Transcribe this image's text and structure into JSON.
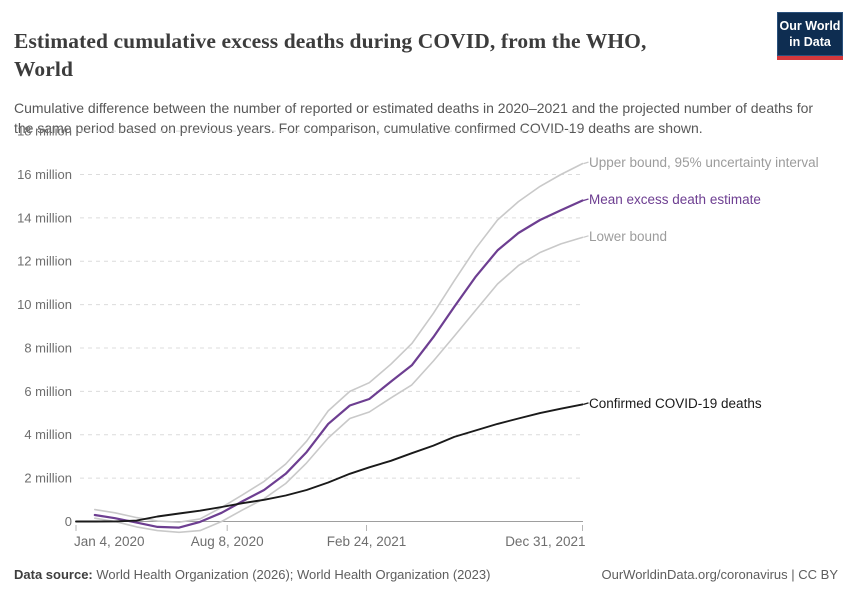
{
  "header": {
    "title": "Estimated cumulative excess deaths during COVID, from the WHO, World",
    "subtitle": "Cumulative difference between the number of reported or estimated deaths in 2020–2021 and the projected number of deaths for the same period based on previous years. For comparison, cumulative confirmed COVID-19 deaths are shown.",
    "logo": {
      "line1": "Our World",
      "line2": "in Data"
    }
  },
  "footer": {
    "datasource_label": "Data source:",
    "datasource_text": " World Health Organization (2026); World Health Organization (2023)",
    "attribution": "OurWorldinData.org/coronavirus | CC BY"
  },
  "colors": {
    "accent_purple": "#6d3e91",
    "bound_line": "#c9c9c9",
    "bound_label": "#9c9c9c",
    "confirmed_line": "#1a1a1a",
    "gridline": "#dcdcdc",
    "zero_line": "#9e9e9e",
    "axis_text": "#6e6e6e",
    "tick_mark": "#b5b5b5",
    "logo_navy": "#0e2d51",
    "logo_red": "#d4383c"
  },
  "chart_data": {
    "type": "line",
    "title": "Estimated cumulative excess deaths during COVID, from the WHO, World",
    "xlabel": "",
    "ylabel": "",
    "x_unit": "days since Jan 4, 2020",
    "x_domain_days": [
      0,
      727
    ],
    "ylim_millions": [
      -0.8,
      18
    ],
    "grid": "dashed-horizontal",
    "legend_position": "right-of-line-labels",
    "x_ticks": [
      {
        "label": "Jan 4, 2020",
        "day": 0
      },
      {
        "label": "Aug 8, 2020",
        "day": 217
      },
      {
        "label": "Feb 24, 2021",
        "day": 417
      },
      {
        "label": "Dec 31, 2021",
        "day": 727
      }
    ],
    "y_ticks": [
      {
        "label": "0",
        "value": 0
      },
      {
        "label": "2 million",
        "value": 2
      },
      {
        "label": "4 million",
        "value": 4
      },
      {
        "label": "6 million",
        "value": 6
      },
      {
        "label": "8 million",
        "value": 8
      },
      {
        "label": "10 million",
        "value": 10
      },
      {
        "label": "12 million",
        "value": 12
      },
      {
        "label": "14 million",
        "value": 14
      },
      {
        "label": "16 million",
        "value": 16
      },
      {
        "label": "18 million",
        "value": 18
      }
    ],
    "series": [
      {
        "name": "Upper bound, 95% uncertainty interval",
        "color": "#c9c9c9",
        "label_color": "#9c9c9c",
        "stroke_width": 1.6,
        "days": [
          27,
          56,
          87,
          117,
          148,
          178,
          209,
          240,
          270,
          301,
          331,
          362,
          393,
          421,
          452,
          482,
          513,
          543,
          574,
          605,
          635,
          666,
          696,
          727
        ],
        "values_millions": [
          0.55,
          0.4,
          0.18,
          0.02,
          -0.03,
          0.12,
          0.65,
          1.25,
          1.85,
          2.65,
          3.7,
          5.1,
          6.0,
          6.4,
          7.25,
          8.2,
          9.6,
          11.1,
          12.6,
          13.9,
          14.75,
          15.45,
          16.0,
          16.5
        ]
      },
      {
        "name": "Lower bound",
        "color": "#c9c9c9",
        "label_color": "#9c9c9c",
        "stroke_width": 1.6,
        "days": [
          27,
          56,
          87,
          117,
          148,
          178,
          209,
          240,
          270,
          301,
          331,
          362,
          393,
          421,
          452,
          482,
          513,
          543,
          574,
          605,
          635,
          666,
          696,
          727
        ],
        "values_millions": [
          0.15,
          0.0,
          -0.25,
          -0.42,
          -0.5,
          -0.42,
          0.0,
          0.55,
          1.05,
          1.75,
          2.7,
          3.85,
          4.75,
          5.05,
          5.7,
          6.3,
          7.4,
          8.55,
          9.75,
          10.95,
          11.8,
          12.4,
          12.8,
          13.1
        ]
      },
      {
        "name": "Mean excess death estimate",
        "color": "#6d3e91",
        "label_color": "#6d3e91",
        "stroke_width": 2.2,
        "days": [
          27,
          56,
          87,
          117,
          148,
          178,
          209,
          240,
          270,
          301,
          331,
          362,
          393,
          421,
          452,
          482,
          513,
          543,
          574,
          605,
          635,
          666,
          696,
          727
        ],
        "values_millions": [
          0.3,
          0.15,
          -0.05,
          -0.25,
          -0.28,
          -0.02,
          0.4,
          0.95,
          1.45,
          2.2,
          3.2,
          4.5,
          5.35,
          5.65,
          6.45,
          7.2,
          8.5,
          9.9,
          11.3,
          12.5,
          13.3,
          13.9,
          14.35,
          14.8
        ]
      },
      {
        "name": "Confirmed COVID-19 deaths",
        "color": "#1a1a1a",
        "label_color": "#1a1a1a",
        "stroke_width": 1.9,
        "days": [
          0,
          27,
          56,
          87,
          117,
          148,
          178,
          209,
          240,
          270,
          301,
          331,
          362,
          393,
          421,
          452,
          482,
          513,
          543,
          574,
          605,
          635,
          666,
          696,
          727
        ],
        "values_millions": [
          0.0,
          0.002,
          0.003,
          0.04,
          0.23,
          0.37,
          0.5,
          0.67,
          0.85,
          1.0,
          1.2,
          1.45,
          1.8,
          2.2,
          2.5,
          2.8,
          3.15,
          3.5,
          3.9,
          4.2,
          4.5,
          4.75,
          5.0,
          5.2,
          5.4
        ]
      }
    ]
  }
}
